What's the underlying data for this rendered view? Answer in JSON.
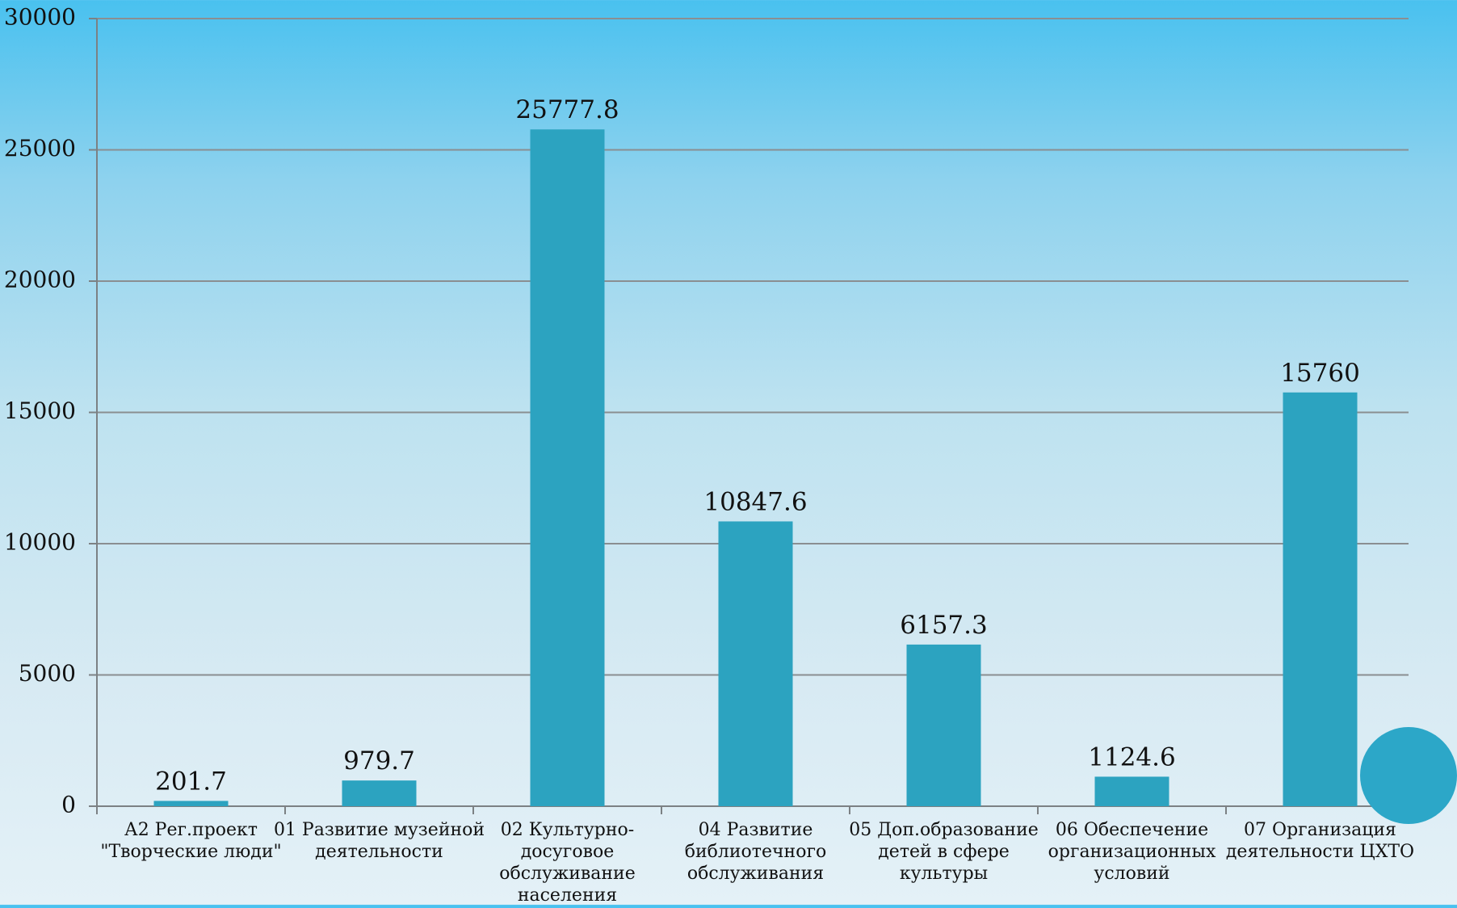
{
  "colors": {
    "bar": "#2ca3c0",
    "grid": "#8a8e91",
    "axis": "#7c8184",
    "text": "#111111",
    "accent_circle": "#2ca7c8"
  },
  "chart_data": {
    "type": "bar",
    "categories": [
      "А2 Рег.проект \"Творческие люди\"",
      "01 Развитие музейной деятельности",
      "02 Культурно-досуговое обслуживание населения",
      "04 Развитие библиотечного обслуживания",
      "05 Доп.образование детей в сфере культуры",
      "06 Обеспечение организационных условий",
      "07 Организация деятельности ЦХТО"
    ],
    "category_label_lines": [
      [
        "А2 Рег.проект",
        "\"Творческие люди\""
      ],
      [
        "01 Развитие музейной",
        "деятельности"
      ],
      [
        "02 Культурно-",
        "досуговое",
        "обслуживание",
        "населения"
      ],
      [
        "04 Развитие",
        "библиотечного",
        "обслуживания"
      ],
      [
        "05 Доп.образование",
        "детей в сфере",
        "культуры"
      ],
      [
        "06 Обеспечение",
        "организационных",
        "условий"
      ],
      [
        "07 Организация",
        "деятельности ЦХТО"
      ]
    ],
    "values": [
      201.7,
      979.7,
      25777.8,
      10847.6,
      6157.3,
      1124.6,
      15760
    ],
    "value_labels": [
      "201.7",
      "979.7",
      "25777.8",
      "10847.6",
      "6157.3",
      "1124.6",
      "15760"
    ],
    "ylim": [
      0,
      30000
    ],
    "yticks": [
      0,
      5000,
      10000,
      15000,
      20000,
      25000,
      30000
    ],
    "title": "",
    "xlabel": "",
    "ylabel": "",
    "grid": true,
    "legend": "none"
  }
}
